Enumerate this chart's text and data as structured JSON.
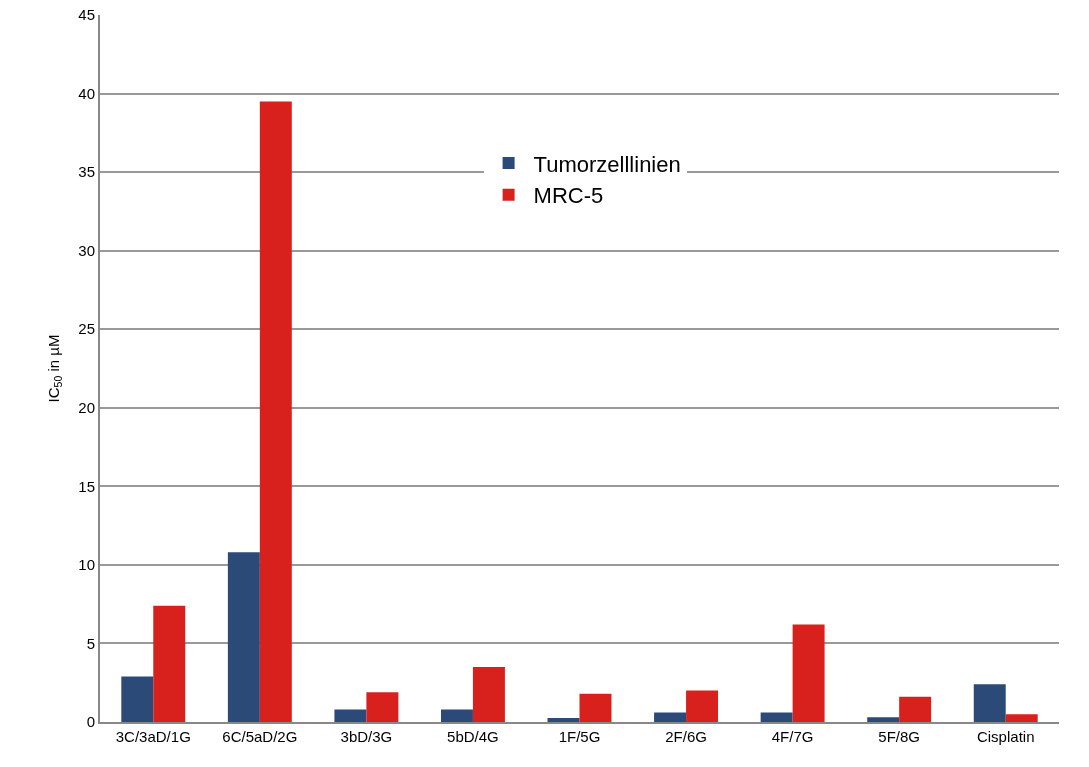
{
  "chart_data": {
    "type": "bar",
    "ylabel": "IC$_{50}$ in µM",
    "categories": [
      "3C/3aD/1G",
      "6C/5aD/2G",
      "3bD/3G",
      "5bD/4G",
      "1F/5G",
      "2F/6G",
      "4F/7G",
      "5F/8G",
      "Cisplatin"
    ],
    "series": [
      {
        "name": "Tumorzelllinien",
        "color": "#2b4a78",
        "values": [
          2.9,
          10.8,
          0.8,
          0.8,
          0.25,
          0.6,
          0.6,
          0.3,
          2.4
        ]
      },
      {
        "name": "MRC-5",
        "color": "#d8201c",
        "values": [
          7.4,
          39.5,
          1.9,
          3.5,
          1.8,
          2.0,
          6.2,
          1.6,
          0.5
        ]
      }
    ],
    "ylim": [
      0,
      45
    ],
    "yticks": [
      0,
      5,
      10,
      15,
      20,
      25,
      30,
      35,
      40,
      45
    ],
    "grid": "y",
    "legend": "top"
  }
}
